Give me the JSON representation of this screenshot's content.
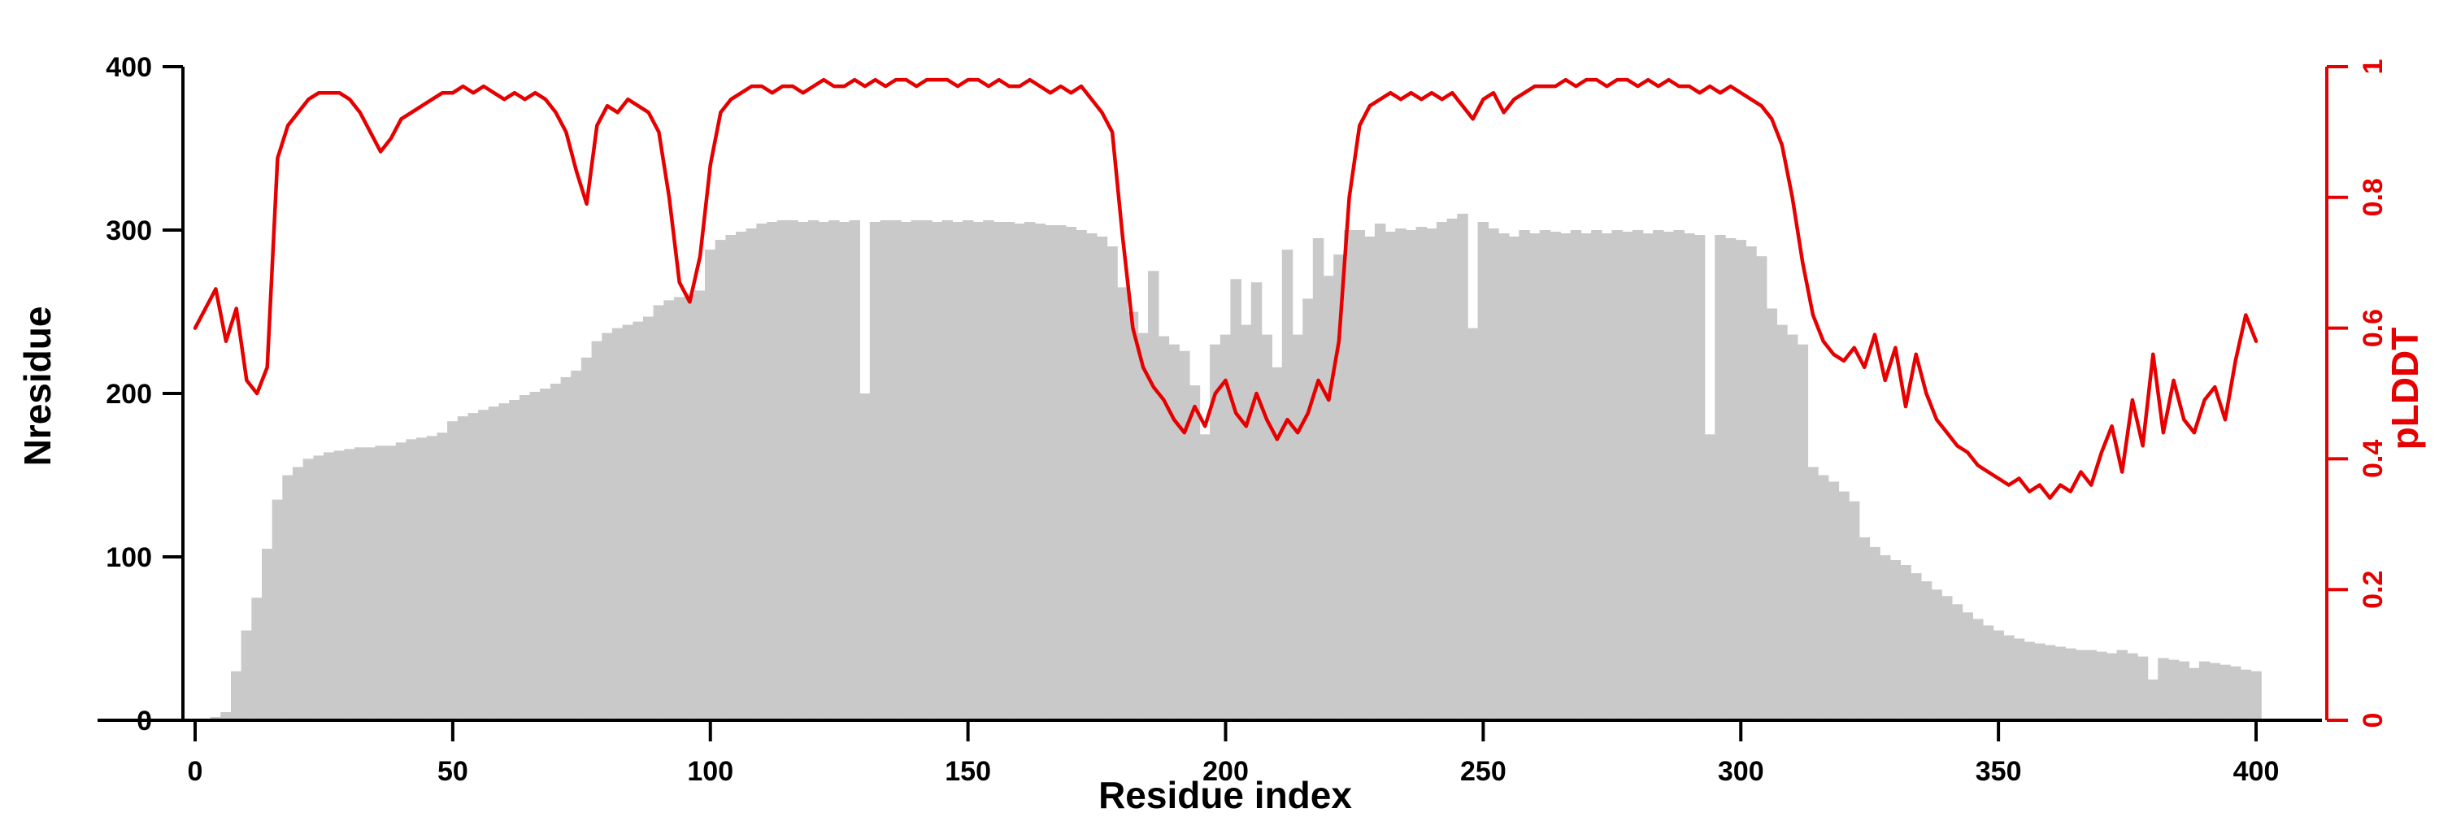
{
  "chart_data": {
    "type": "bar",
    "subtype": "bar-plus-line-dual-axis",
    "title": "",
    "xlabel": "Residue index",
    "ylabel_left": "Nresidue",
    "ylabel_right": "pLDDT",
    "xlim": [
      0,
      400
    ],
    "ylim_left": [
      0,
      400
    ],
    "ylim_right": [
      0,
      1
    ],
    "x_ticks": [
      0,
      50,
      100,
      150,
      200,
      250,
      300,
      350,
      400
    ],
    "y_left_ticks": [
      0,
      100,
      200,
      300,
      400
    ],
    "y_right_ticks": [
      0,
      0.2,
      0.4,
      0.6,
      0.8,
      1
    ],
    "y_right_tick_labels": [
      "0",
      "0.2",
      "0.4",
      "0.6",
      "0.8",
      "1"
    ],
    "grid": false,
    "legend": "none",
    "bar_color": "#c9c9c9",
    "line_color": "#e60000",
    "axis_color": "#000000",
    "x": [
      0,
      2,
      4,
      6,
      8,
      10,
      12,
      14,
      16,
      18,
      20,
      22,
      24,
      26,
      28,
      30,
      32,
      34,
      36,
      38,
      40,
      42,
      44,
      46,
      48,
      50,
      52,
      54,
      56,
      58,
      60,
      62,
      64,
      66,
      68,
      70,
      72,
      74,
      76,
      78,
      80,
      82,
      84,
      86,
      88,
      90,
      92,
      94,
      96,
      98,
      100,
      102,
      104,
      106,
      108,
      110,
      112,
      114,
      116,
      118,
      120,
      122,
      124,
      126,
      128,
      130,
      132,
      134,
      136,
      138,
      140,
      142,
      144,
      146,
      148,
      150,
      152,
      154,
      156,
      158,
      160,
      162,
      164,
      166,
      168,
      170,
      172,
      174,
      176,
      178,
      180,
      182,
      184,
      186,
      188,
      190,
      192,
      194,
      196,
      198,
      200,
      202,
      204,
      206,
      208,
      210,
      212,
      214,
      216,
      218,
      220,
      222,
      224,
      226,
      228,
      230,
      232,
      234,
      236,
      238,
      240,
      242,
      244,
      246,
      248,
      250,
      252,
      254,
      256,
      258,
      260,
      262,
      264,
      266,
      268,
      270,
      272,
      274,
      276,
      278,
      280,
      282,
      284,
      286,
      288,
      290,
      292,
      294,
      296,
      298,
      300,
      302,
      304,
      306,
      308,
      310,
      312,
      314,
      316,
      318,
      320,
      322,
      324,
      326,
      328,
      330,
      332,
      334,
      336,
      338,
      340,
      342,
      344,
      346,
      348,
      350,
      352,
      354,
      356,
      358,
      360,
      362,
      364,
      366,
      368,
      370,
      372,
      374,
      376,
      378,
      380,
      382,
      384,
      386,
      388,
      390,
      392,
      394,
      396,
      398,
      400
    ],
    "series": [
      {
        "name": "Nresidue",
        "type": "bar",
        "axis": "left",
        "values": [
          0,
          1,
          2,
          5,
          30,
          55,
          75,
          105,
          135,
          150,
          155,
          160,
          162,
          164,
          165,
          166,
          167,
          167,
          168,
          168,
          170,
          172,
          173,
          174,
          176,
          183,
          186,
          188,
          190,
          192,
          194,
          196,
          199,
          201,
          203,
          206,
          210,
          214,
          222,
          232,
          237,
          240,
          242,
          244,
          247,
          254,
          257,
          259,
          261,
          263,
          288,
          294,
          297,
          299,
          301,
          304,
          305,
          306,
          306,
          305,
          306,
          305,
          306,
          305,
          306,
          200,
          305,
          306,
          306,
          305,
          306,
          306,
          305,
          306,
          305,
          306,
          305,
          306,
          305,
          305,
          304,
          305,
          304,
          303,
          303,
          302,
          300,
          298,
          296,
          290,
          265,
          250,
          237,
          275,
          235,
          230,
          226,
          205,
          175,
          230,
          236,
          270,
          242,
          268,
          236,
          216,
          288,
          236,
          258,
          295,
          272,
          285,
          300,
          300,
          296,
          304,
          299,
          301,
          300,
          302,
          301,
          305,
          307,
          310,
          240,
          305,
          301,
          298,
          296,
          300,
          298,
          300,
          299,
          298,
          300,
          298,
          300,
          298,
          300,
          299,
          300,
          298,
          300,
          299,
          300,
          298,
          297,
          175,
          297,
          295,
          294,
          290,
          284,
          252,
          242,
          236,
          230,
          155,
          150,
          146,
          140,
          134,
          112,
          106,
          101,
          98,
          95,
          90,
          85,
          80,
          76,
          71,
          66,
          62,
          58,
          55,
          52,
          50,
          48,
          47,
          46,
          45,
          44,
          43,
          43,
          42,
          41,
          43,
          41,
          39,
          25,
          38,
          37,
          36,
          32,
          36,
          35,
          34,
          33,
          31,
          30
        ]
      },
      {
        "name": "pLDDT",
        "type": "line",
        "axis": "right",
        "values": [
          0.6,
          0.63,
          0.66,
          0.58,
          0.63,
          0.52,
          0.5,
          0.54,
          0.86,
          0.91,
          0.93,
          0.95,
          0.96,
          0.96,
          0.96,
          0.95,
          0.93,
          0.9,
          0.87,
          0.89,
          0.92,
          0.93,
          0.94,
          0.95,
          0.96,
          0.96,
          0.97,
          0.96,
          0.97,
          0.96,
          0.95,
          0.96,
          0.95,
          0.96,
          0.95,
          0.93,
          0.9,
          0.84,
          0.79,
          0.91,
          0.94,
          0.93,
          0.95,
          0.94,
          0.93,
          0.9,
          0.8,
          0.67,
          0.64,
          0.71,
          0.85,
          0.93,
          0.95,
          0.96,
          0.97,
          0.97,
          0.96,
          0.97,
          0.97,
          0.96,
          0.97,
          0.98,
          0.97,
          0.97,
          0.98,
          0.97,
          0.98,
          0.97,
          0.98,
          0.98,
          0.97,
          0.98,
          0.98,
          0.98,
          0.97,
          0.98,
          0.98,
          0.97,
          0.98,
          0.97,
          0.97,
          0.98,
          0.97,
          0.96,
          0.97,
          0.96,
          0.97,
          0.95,
          0.93,
          0.9,
          0.74,
          0.6,
          0.54,
          0.51,
          0.49,
          0.46,
          0.44,
          0.48,
          0.45,
          0.5,
          0.52,
          0.47,
          0.45,
          0.5,
          0.46,
          0.43,
          0.46,
          0.44,
          0.47,
          0.52,
          0.49,
          0.58,
          0.8,
          0.91,
          0.94,
          0.95,
          0.96,
          0.95,
          0.96,
          0.95,
          0.96,
          0.95,
          0.96,
          0.94,
          0.92,
          0.95,
          0.96,
          0.93,
          0.95,
          0.96,
          0.97,
          0.97,
          0.97,
          0.98,
          0.97,
          0.98,
          0.98,
          0.97,
          0.98,
          0.98,
          0.97,
          0.98,
          0.97,
          0.98,
          0.97,
          0.97,
          0.96,
          0.97,
          0.96,
          0.97,
          0.96,
          0.95,
          0.94,
          0.92,
          0.88,
          0.8,
          0.7,
          0.62,
          0.58,
          0.56,
          0.55,
          0.57,
          0.54,
          0.59,
          0.52,
          0.57,
          0.48,
          0.56,
          0.5,
          0.46,
          0.44,
          0.42,
          0.41,
          0.39,
          0.38,
          0.37,
          0.36,
          0.37,
          0.35,
          0.36,
          0.34,
          0.36,
          0.35,
          0.38,
          0.36,
          0.41,
          0.45,
          0.38,
          0.49,
          0.42,
          0.56,
          0.44,
          0.52,
          0.46,
          0.44,
          0.49,
          0.51,
          0.46,
          0.55,
          0.62,
          0.58
        ]
      }
    ]
  }
}
